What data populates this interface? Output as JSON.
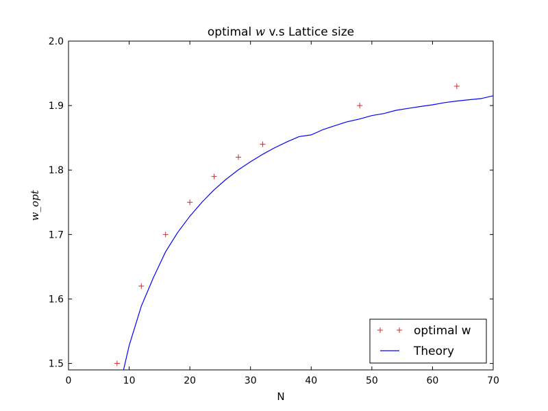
{
  "chart_data": {
    "type": "scatter",
    "title": {
      "prefix": "optimal ",
      "math": "w",
      "suffix": " v.s Lattice size"
    },
    "xlabel": "N",
    "ylabel": "w_opt",
    "xlim": [
      0,
      70
    ],
    "ylim": [
      1.49,
      2.0
    ],
    "xticks": [
      0,
      10,
      20,
      30,
      40,
      50,
      60,
      70
    ],
    "xtick_labels": [
      "0",
      "10",
      "20",
      "30",
      "40",
      "50",
      "60",
      "70"
    ],
    "yticks": [
      1.5,
      1.6,
      1.7,
      1.8,
      1.9,
      2.0
    ],
    "ytick_labels": [
      "1.5",
      "1.6",
      "1.7",
      "1.8",
      "1.9",
      "2.0"
    ],
    "grid": false,
    "legend_position": "lower-right",
    "series": [
      {
        "name": "optimal w",
        "kind": "scatter",
        "marker": "plus",
        "color": "#d62728",
        "x": [
          8,
          12,
          16,
          20,
          24,
          28,
          32,
          48,
          64
        ],
        "y": [
          1.5,
          1.62,
          1.7,
          1.75,
          1.79,
          1.82,
          1.84,
          1.9,
          1.93
        ]
      },
      {
        "name": "Theory",
        "kind": "line",
        "color": "#0000ff",
        "formula": "2 / (1 + sin(pi / N))",
        "x": [
          8,
          10,
          12,
          14,
          16,
          18,
          20,
          22,
          24,
          26,
          28,
          30,
          32,
          34,
          36,
          38,
          40,
          42,
          44,
          46,
          48,
          50,
          52,
          54,
          56,
          58,
          60,
          62,
          64,
          66,
          68,
          70
        ],
        "y": [
          1.4465,
          1.5279,
          1.5889,
          1.6333,
          1.6732,
          1.7032,
          1.7283,
          1.7502,
          1.7693,
          1.7859,
          1.8004,
          1.8129,
          1.8244,
          1.8347,
          1.8437,
          1.8519,
          1.8545,
          1.8629,
          1.8691,
          1.8751,
          1.8792,
          1.8845,
          1.8877,
          1.8927,
          1.8957,
          1.8985,
          1.9012,
          1.9046,
          1.907,
          1.909,
          1.9109,
          1.9152
        ]
      }
    ]
  }
}
